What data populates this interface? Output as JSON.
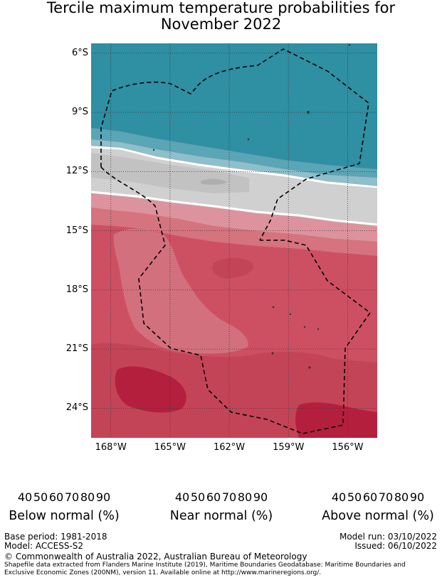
{
  "title": {
    "line1": "Tercile maximum temperature probabilities for",
    "line2": "November 2022"
  },
  "map": {
    "lat_labels": [
      "6°S",
      "9°S",
      "12°S",
      "15°S",
      "18°S",
      "21°S",
      "24°S"
    ],
    "lon_labels": [
      "168°W",
      "165°W",
      "162°W",
      "159°W",
      "156°W"
    ],
    "lat_values": [
      -6,
      -9,
      -12,
      -15,
      -18,
      -21,
      -24
    ],
    "lon_values": [
      -168,
      -165,
      -162,
      -159,
      -156
    ],
    "extent": {
      "lon_min": -169,
      "lon_max": -154.5,
      "lat_min": -25.5,
      "lat_max": -5.5
    },
    "colors": {
      "below_strong": "#2f8fa3",
      "near": "#c9c9c9",
      "above_mid": "#cc4e5f",
      "above_strong": "#b81e3d"
    }
  },
  "legends": [
    {
      "caption": "Below normal (%)",
      "ticks": [
        "40",
        "50",
        "60",
        "70",
        "80",
        "90"
      ],
      "colors": [
        "#c5e1e6",
        "#a4c9d1",
        "#86b6c2",
        "#62a3b3",
        "#3f97a8",
        "#22869b"
      ]
    },
    {
      "caption": "Near normal (%)",
      "ticks": [
        "40",
        "50",
        "60",
        "70",
        "80",
        "90"
      ],
      "colors": [
        "#e9e9e9",
        "#d9d9d9",
        "#c8c8c8",
        "#b8b8b8",
        "#a4a4a4",
        "#8c8c8c"
      ]
    },
    {
      "caption": "Above normal (%)",
      "ticks": [
        "40",
        "50",
        "60",
        "70",
        "80",
        "90"
      ],
      "colors": [
        "#e5bcc3",
        "#da9aa3",
        "#cf7a86",
        "#c65d6c",
        "#bd3b52",
        "#b21b3c"
      ]
    }
  ],
  "footer": {
    "base_period": "Base period: 1981-2018",
    "model": "Model: ACCESS-S2",
    "model_run": "Model run: 03/10/2022",
    "issued": "Issued: 06/10/2022",
    "copyright": "© Commonwealth of Australia 2022, Australian Bureau of Meteorology",
    "shapefile_line1": "Shapefile data extracted from Flanders Marine Institute (2019), Maritime Boundaries Geodatabase: Maritime Boundaries and",
    "shapefile_line2": "Exclusive Economic Zones (200NM), version 11. Available online at http://www.marineregions.org/."
  }
}
